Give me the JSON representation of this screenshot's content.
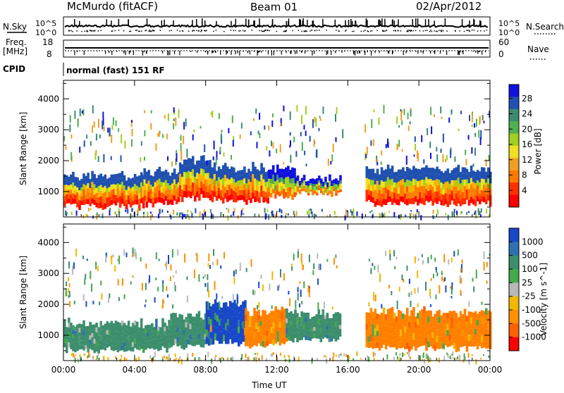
{
  "header": {
    "station": "McMurdo (fitACF)",
    "beam": "Beam 01",
    "date": "02/Apr/2012"
  },
  "status_panel": {
    "nsky_label": "N.Sky",
    "nsky_ticks": [
      "10^5",
      "10^0"
    ],
    "nsearch_label": "N.Search",
    "nsearch_ticks": [
      "10^5",
      "10^0"
    ],
    "freq_label_line1": "Freq.",
    "freq_label_line2": "[MHz]",
    "freq_ticks": [
      "18",
      "8"
    ],
    "nave_label": "Nave",
    "nave_ticks": [
      "60",
      "0"
    ],
    "cpid_label": "CPID",
    "cpid_text": "normal (fast) 151 RF"
  },
  "chart_data": [
    {
      "type": "heatmap",
      "title": "",
      "xlabel": "",
      "ylabel": "Slant Range [km]",
      "x_tick_labels": [
        "00:00",
        "04:00",
        "08:00",
        "12:00",
        "16:00",
        "20:00",
        "00:00"
      ],
      "xlim_hours": [
        0,
        24
      ],
      "ylim_km": [
        180,
        4600
      ],
      "y_tick_labels": [
        "1000",
        "2000",
        "3000",
        "4000"
      ],
      "y_ticks_km": [
        1000,
        2000,
        3000,
        4000
      ],
      "colorbar": {
        "label": "Power [dB]",
        "tick_labels": [
          "4",
          "8",
          "12",
          "16",
          "20",
          "24",
          "28"
        ],
        "colors": [
          "#1010e0",
          "#2050b0",
          "#3d8a70",
          "#50b050",
          "#a0d020",
          "#f0e020",
          "#f0a020",
          "#ff7a00",
          "#ff3000",
          "#ff0000"
        ]
      },
      "bands": [
        {
          "x0": 0,
          "x1": 4.5,
          "y0": 520,
          "y1": 1500,
          "level": "high"
        },
        {
          "x0": 4.5,
          "x1": 6.5,
          "y0": 620,
          "y1": 1650,
          "level": "high"
        },
        {
          "x0": 6.5,
          "x1": 8.2,
          "y0": 780,
          "y1": 2000,
          "level": "high"
        },
        {
          "x0": 8.2,
          "x1": 11.5,
          "y0": 720,
          "y1": 1800,
          "level": "high"
        },
        {
          "x0": 11.5,
          "x1": 13.0,
          "y0": 800,
          "y1": 1750,
          "level": "mid"
        },
        {
          "x0": 13.0,
          "x1": 15.6,
          "y0": 950,
          "y1": 1450,
          "level": "mid"
        },
        {
          "x0": 17.0,
          "x1": 24.0,
          "y0": 620,
          "y1": 1750,
          "level": "high"
        }
      ]
    },
    {
      "type": "heatmap",
      "title": "",
      "xlabel": "Time UT",
      "ylabel": "Slant Range [km]",
      "x_tick_labels": [
        "00:00",
        "04:00",
        "08:00",
        "12:00",
        "16:00",
        "20:00",
        "00:00"
      ],
      "xlim_hours": [
        0,
        24
      ],
      "ylim_km": [
        180,
        4600
      ],
      "y_tick_labels": [
        "1000",
        "2000",
        "3000",
        "4000"
      ],
      "y_ticks_km": [
        1000,
        2000,
        3000,
        4000
      ],
      "colorbar": {
        "label": "Velocity [m s^-1]",
        "tick_labels": [
          "1000",
          "500",
          "100",
          "25",
          "-25",
          "-100",
          "-500",
          "-1000"
        ],
        "colors": [
          "#1848c8",
          "#3070b0",
          "#3c8e6c",
          "#44a84c",
          "#b8b8b8",
          "#f0b800",
          "#ff9000",
          "#ff6000",
          "#ff0000"
        ]
      },
      "bands": [
        {
          "x0": 0,
          "x1": 6.0,
          "y0": 520,
          "y1": 1400,
          "level": "green"
        },
        {
          "x0": 6.0,
          "x1": 8.0,
          "y0": 650,
          "y1": 1650,
          "level": "green"
        },
        {
          "x0": 8.0,
          "x1": 10.2,
          "y0": 750,
          "y1": 2050,
          "level": "blue"
        },
        {
          "x0": 10.2,
          "x1": 12.5,
          "y0": 700,
          "y1": 1800,
          "level": "orange"
        },
        {
          "x0": 12.5,
          "x1": 15.6,
          "y0": 850,
          "y1": 1700,
          "level": "green"
        },
        {
          "x0": 17.0,
          "x1": 24.0,
          "y0": 580,
          "y1": 1750,
          "level": "orange"
        }
      ]
    }
  ]
}
